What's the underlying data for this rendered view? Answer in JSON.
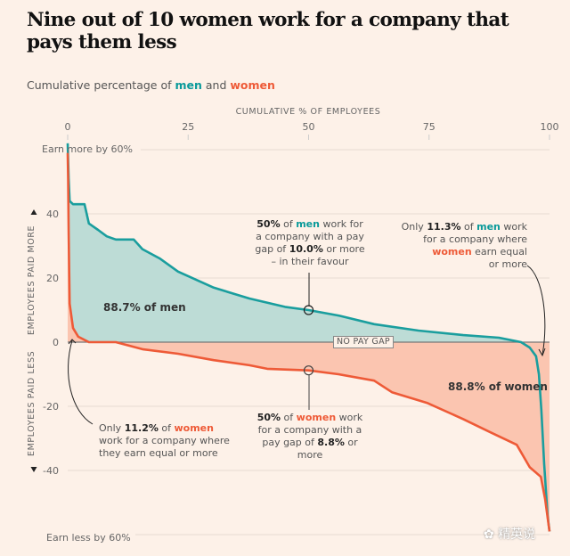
{
  "title": "Nine out of 10 women work for a company that pays them less",
  "subtitle": {
    "prefix": "Cumulative percentage of ",
    "men": "men",
    "and": " and ",
    "women": "women"
  },
  "colors": {
    "men": "#1a9e9e",
    "men_fill": "#bddcd6",
    "women": "#ee5a37",
    "women_fill": "#fbc5b0",
    "background": "#fdf1e8"
  },
  "annotations": {
    "men_area": "88.7% of men",
    "women_area": "88.8% of women",
    "no_pay_gap": "NO PAY GAP",
    "men_median": {
      "pct": "50%",
      "of": " of ",
      "group": "men",
      "l1": " work for",
      "l2": "a company with a pay",
      "l3a": "gap of ",
      "value": "10.0%",
      "l3b": " or  more",
      "l4": "– in their favour"
    },
    "men_equal": {
      "only": "Only ",
      "value": "11.3%",
      "of": " of ",
      "group": "men",
      "l1": " work",
      "l2": "for a company where",
      "group2": "women",
      "l3": " earn equal",
      "l4": "or more"
    },
    "women_equal": {
      "only": "Only ",
      "value": "11.2%",
      "of": " of ",
      "group": "women",
      "l2": "work for a company where",
      "l3": "they earn equal or more"
    },
    "women_median": {
      "pct": "50%",
      "of": " of ",
      "group": "women",
      "l1": " work",
      "l2": "for a company with a",
      "l3a": "pay gap of ",
      "value": "8.8%",
      "l3b": " or more"
    }
  },
  "watermark": "精英说",
  "chart_data": {
    "type": "area",
    "title": "Nine out of 10 women work for a company that pays them less",
    "subtitle": "Cumulative percentage of men and women",
    "xlabel": "CUMULATIVE % OF EMPLOYEES",
    "ylabel_top": "EMPLOYEES PAID MORE",
    "ylabel_bottom": "EMPLOYEES PAID LESS",
    "xlim": [
      0,
      100
    ],
    "ylim": [
      -60,
      60
    ],
    "x_ticks": [
      0,
      25,
      50,
      75,
      100
    ],
    "y_ticks": [
      40,
      20,
      0,
      -20,
      -40
    ],
    "top_edge_label": "Earn more by 60%",
    "bottom_edge_label": "Earn less by 60%",
    "grid": true,
    "series": [
      {
        "name": "men",
        "x": [
          0,
          0.2,
          0.4,
          1.1,
          3.5,
          4.4,
          6.3,
          8.1,
          10,
          13.7,
          15.5,
          19.2,
          22.9,
          30.3,
          37.7,
          45.1,
          50,
          56.2,
          63.6,
          72.8,
          82.1,
          89.5,
          94.1,
          95.9,
          97.2,
          97.8,
          98.3,
          98.9,
          99.6,
          100
        ],
        "y": [
          62,
          51,
          44,
          43,
          43,
          37,
          35,
          33,
          32,
          32,
          29,
          26,
          22,
          17,
          13.6,
          11,
          10,
          8.3,
          5.6,
          3.6,
          2.2,
          1.4,
          0,
          -1.7,
          -4.4,
          -10,
          -21,
          -38,
          -54,
          -59
        ]
      },
      {
        "name": "women",
        "x": [
          0,
          0.1,
          0.2,
          0.4,
          1.1,
          2.2,
          4.4,
          10,
          15.5,
          22.9,
          30.3,
          37.7,
          41.4,
          50,
          56.2,
          63.6,
          67.3,
          74.7,
          82.1,
          87.6,
          93.2,
          95.9,
          98.2,
          99.1,
          100
        ],
        "y": [
          59,
          51,
          34,
          12,
          4.4,
          1.7,
          0,
          0,
          -2.2,
          -3.6,
          -5.6,
          -7.2,
          -8.3,
          -8.8,
          -10,
          -12,
          -15.6,
          -19,
          -24,
          -28,
          -32,
          -39,
          -42,
          -49,
          -59
        ]
      }
    ],
    "annotations": [
      "88.7% of men",
      "88.8% of women",
      "50% of men work for a company with a pay gap of 10.0% or more – in their favour",
      "Only 11.3% of men work for a company where women earn equal or more",
      "Only 11.2% of women work for a company where they earn equal or more",
      "50% of women work for a company with a pay gap of 8.8% or more",
      "NO PAY GAP"
    ]
  }
}
